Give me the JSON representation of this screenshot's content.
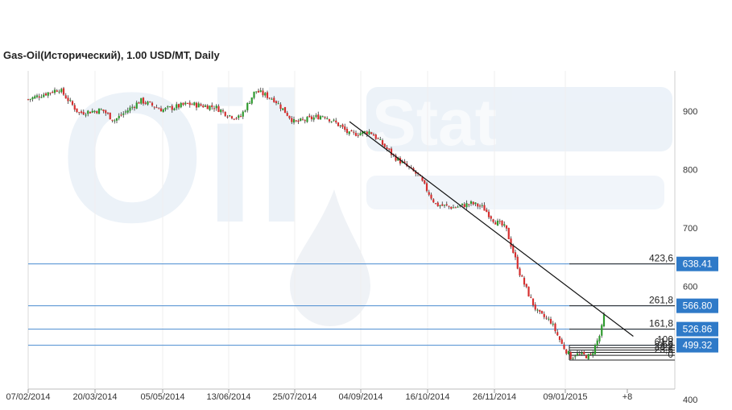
{
  "chart_data": {
    "type": "candlestick",
    "title": "Gas-Oil(Исторический), 1.00 USD/MT, Daily",
    "ylim": [
      400,
      975
    ],
    "y_ticks": [
      900,
      800,
      700,
      600,
      400
    ],
    "x_ticks": [
      "07/02/2014",
      "20/03/2014",
      "05/05/2014",
      "13/06/2014",
      "25/07/2014",
      "04/09/2014",
      "16/10/2014",
      "26/11/2014",
      "09/01/2015",
      "+8"
    ],
    "price_lines": [
      {
        "value": 638.41,
        "label": "638.41"
      },
      {
        "value": 566.8,
        "label": "566.80"
      },
      {
        "value": 526.86,
        "label": "526.86"
      },
      {
        "value": 499.32,
        "label": "499.32"
      }
    ],
    "fib_levels": [
      {
        "label": "423,6",
        "value": 638.41
      },
      {
        "label": "261,8",
        "value": 566.8
      },
      {
        "label": "161,8",
        "value": 526.86
      },
      {
        "label": "100",
        "value": 499.32
      },
      {
        "label": "61,8",
        "value": 495
      },
      {
        "label": "50",
        "value": 491
      },
      {
        "label": "38,2",
        "value": 487
      },
      {
        "label": "23,6",
        "value": 482
      },
      {
        "label": "0",
        "value": 474
      }
    ],
    "trendline": {
      "from": {
        "date": "28/08/2014",
        "price": 882
      },
      "to": {
        "date": "05/02/2015",
        "price": 551
      }
    },
    "close_path": [
      {
        "date": "07/02/2014",
        "price": 920
      },
      {
        "date": "26/02/2014",
        "price": 938
      },
      {
        "date": "10/03/2014",
        "price": 897
      },
      {
        "date": "25/03/2014",
        "price": 902
      },
      {
        "date": "02/04/2014",
        "price": 884
      },
      {
        "date": "20/04/2014",
        "price": 918
      },
      {
        "date": "05/05/2014",
        "price": 902
      },
      {
        "date": "20/05/2014",
        "price": 912
      },
      {
        "date": "05/06/2014",
        "price": 907
      },
      {
        "date": "13/06/2014",
        "price": 893
      },
      {
        "date": "20/06/2014",
        "price": 888
      },
      {
        "date": "30/06/2014",
        "price": 935
      },
      {
        "date": "12/07/2014",
        "price": 920
      },
      {
        "date": "25/07/2014",
        "price": 880
      },
      {
        "date": "12/08/2014",
        "price": 893
      },
      {
        "date": "22/08/2014",
        "price": 875
      },
      {
        "date": "28/08/2014",
        "price": 860
      },
      {
        "date": "10/09/2014",
        "price": 865
      },
      {
        "date": "25/09/2014",
        "price": 822
      },
      {
        "date": "10/10/2014",
        "price": 790
      },
      {
        "date": "21/10/2014",
        "price": 740
      },
      {
        "date": "01/11/2014",
        "price": 735
      },
      {
        "date": "12/11/2014",
        "price": 742
      },
      {
        "date": "19/11/2014",
        "price": 735
      },
      {
        "date": "26/11/2014",
        "price": 712
      },
      {
        "date": "03/12/2014",
        "price": 700
      },
      {
        "date": "12/12/2014",
        "price": 620
      },
      {
        "date": "19/12/2014",
        "price": 575
      },
      {
        "date": "23/12/2014",
        "price": 554
      },
      {
        "date": "31/12/2014",
        "price": 540
      },
      {
        "date": "07/01/2015",
        "price": 500
      },
      {
        "date": "13/01/2015",
        "price": 478
      },
      {
        "date": "16/01/2015",
        "price": 484
      },
      {
        "date": "26/01/2015",
        "price": 480
      },
      {
        "date": "02/02/2015",
        "price": 520
      },
      {
        "date": "05/02/2015",
        "price": 560
      }
    ]
  }
}
